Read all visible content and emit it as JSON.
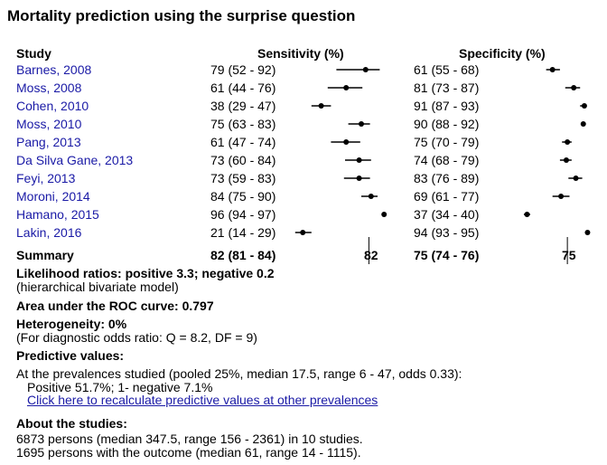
{
  "title": "Mortality prediction using the surprise question",
  "headers": {
    "study": "Study",
    "sensitivity": "Sensitivity (%)",
    "specificity": "Specificity (%)"
  },
  "studies": [
    {
      "name": "Barnes, 2008",
      "sens_text": "79 (52 - 92)",
      "spec_text": "61 (55 - 68)",
      "sens": [
        79,
        52,
        92
      ],
      "spec": [
        61,
        55,
        68
      ]
    },
    {
      "name": "Moss, 2008",
      "sens_text": "61 (44 - 76)",
      "spec_text": "81 (73 - 87)",
      "sens": [
        61,
        44,
        76
      ],
      "spec": [
        81,
        73,
        87
      ]
    },
    {
      "name": "Cohen, 2010",
      "sens_text": "38 (29 - 47)",
      "spec_text": "91 (87 - 93)",
      "sens": [
        38,
        29,
        47
      ],
      "spec": [
        91,
        87,
        93
      ]
    },
    {
      "name": "Moss, 2010",
      "sens_text": "75 (63 - 83)",
      "spec_text": "90 (88 - 92)",
      "sens": [
        75,
        63,
        83
      ],
      "spec": [
        90,
        88,
        92
      ]
    },
    {
      "name": "Pang, 2013",
      "sens_text": "61 (47 - 74)",
      "spec_text": "75 (70 - 79)",
      "sens": [
        61,
        47,
        74
      ],
      "spec": [
        75,
        70,
        79
      ]
    },
    {
      "name": "Da Silva Gane, 2013",
      "sens_text": "73 (60 - 84)",
      "spec_text": "74 (68 - 79)",
      "sens": [
        73,
        60,
        84
      ],
      "spec": [
        74,
        68,
        79
      ]
    },
    {
      "name": "Feyi, 2013",
      "sens_text": "73 (59 - 83)",
      "spec_text": "83 (76 - 89)",
      "sens": [
        73,
        59,
        83
      ],
      "spec": [
        83,
        76,
        89
      ]
    },
    {
      "name": "Moroni, 2014",
      "sens_text": "84 (75 - 90)",
      "spec_text": "69 (61 - 77)",
      "sens": [
        84,
        75,
        90
      ],
      "spec": [
        69,
        61,
        77
      ]
    },
    {
      "name": "Hamano, 2015",
      "sens_text": "96 (94 - 97)",
      "spec_text": "37 (34 - 40)",
      "sens": [
        96,
        94,
        97
      ],
      "spec": [
        37,
        34,
        40
      ]
    },
    {
      "name": "Lakin, 2016",
      "sens_text": "21 (14 - 29)",
      "spec_text": "94 (93 - 95)",
      "sens": [
        21,
        14,
        29
      ],
      "spec": [
        94,
        93,
        95
      ]
    }
  ],
  "summary": {
    "label": "Summary",
    "sens_text": "82 (81 - 84)",
    "sens_tick": "82",
    "sens_value": 82,
    "spec_text": "75 (74 - 76)",
    "spec_tick": "75",
    "spec_value": 75
  },
  "likelihood": {
    "heading": "Likelihood ratios: positive 3.3; negative 0.2",
    "note": "(hierarchical bivariate model)"
  },
  "auc": {
    "heading": "Area under the ROC curve: 0.797"
  },
  "heterogeneity": {
    "heading": "Heterogeneity: 0%",
    "note": "(For diagnostic odds ratio: Q = 8.2, DF = 9)"
  },
  "predictive": {
    "heading": "Predictive values:",
    "line1": "At the prevalences studied (pooled 25%, median 17.5, range 6 - 47, odds 0.33):",
    "line2": "Positive 51.7%; 1- negative 7.1%",
    "link": "Click here to recalculate predictive values at other prevalences"
  },
  "about": {
    "heading": "About the studies:",
    "line1": "6873 persons (median 347.5, range 156 - 2361) in 10 studies.",
    "line2": "1695 persons with the outcome (median 61, range 14 - 1115)."
  }
}
